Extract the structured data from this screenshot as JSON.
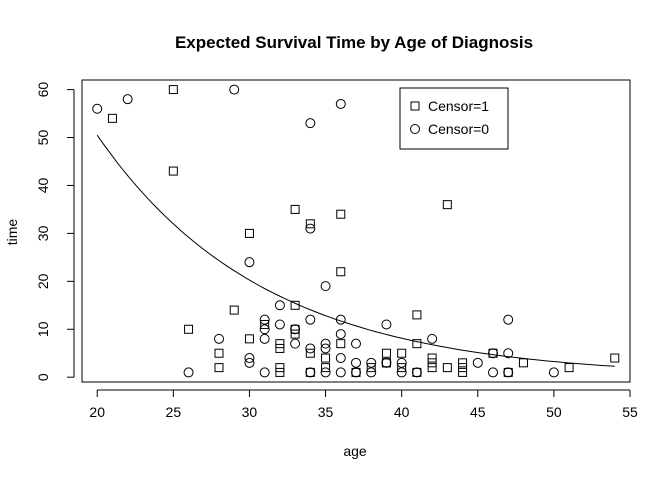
{
  "chart_data": {
    "type": "scatter",
    "title": "Expected Survival Time by Age of Diagnosis",
    "xlabel": "age",
    "ylabel": "time",
    "xlim": [
      19,
      55
    ],
    "ylim": [
      -1,
      62
    ],
    "xticks": [
      20,
      25,
      30,
      35,
      40,
      45,
      50,
      55
    ],
    "yticks": [
      0,
      10,
      20,
      30,
      40,
      50,
      60
    ],
    "legend": {
      "position": "top-right",
      "entries": [
        {
          "label": "Censor=1",
          "marker": "square"
        },
        {
          "label": "Censor=0",
          "marker": "circle"
        }
      ]
    },
    "series": [
      {
        "name": "Censor=1",
        "marker": "square",
        "points": [
          [
            21,
            54
          ],
          [
            25,
            60
          ],
          [
            25,
            43
          ],
          [
            26,
            10
          ],
          [
            28,
            5
          ],
          [
            28,
            2
          ],
          [
            29,
            14
          ],
          [
            30,
            30
          ],
          [
            30,
            8
          ],
          [
            31,
            11
          ],
          [
            32,
            7
          ],
          [
            32,
            6
          ],
          [
            32,
            2
          ],
          [
            32,
            1
          ],
          [
            33,
            35
          ],
          [
            33,
            15
          ],
          [
            33,
            10
          ],
          [
            33,
            9
          ],
          [
            34,
            32
          ],
          [
            34,
            5
          ],
          [
            34,
            1
          ],
          [
            35,
            4
          ],
          [
            35,
            2
          ],
          [
            36,
            34
          ],
          [
            36,
            22
          ],
          [
            36,
            7
          ],
          [
            37,
            1
          ],
          [
            38,
            2
          ],
          [
            39,
            5
          ],
          [
            39,
            3
          ],
          [
            39,
            3
          ],
          [
            40,
            5
          ],
          [
            40,
            2
          ],
          [
            41,
            13
          ],
          [
            41,
            7
          ],
          [
            41,
            1
          ],
          [
            42,
            4
          ],
          [
            42,
            3
          ],
          [
            42,
            2
          ],
          [
            43,
            36
          ],
          [
            43,
            2
          ],
          [
            44,
            3
          ],
          [
            44,
            2
          ],
          [
            44,
            1
          ],
          [
            46,
            5
          ],
          [
            47,
            1
          ],
          [
            48,
            3
          ],
          [
            51,
            2
          ],
          [
            54,
            4
          ]
        ]
      },
      {
        "name": "Censor=0",
        "marker": "circle",
        "points": [
          [
            20,
            56
          ],
          [
            22,
            58
          ],
          [
            26,
            1
          ],
          [
            28,
            8
          ],
          [
            29,
            60
          ],
          [
            30,
            24
          ],
          [
            30,
            4
          ],
          [
            30,
            3
          ],
          [
            31,
            12
          ],
          [
            31,
            10
          ],
          [
            31,
            8
          ],
          [
            31,
            1
          ],
          [
            32,
            15
          ],
          [
            32,
            11
          ],
          [
            33,
            10
          ],
          [
            33,
            7
          ],
          [
            34,
            53
          ],
          [
            34,
            31
          ],
          [
            34,
            12
          ],
          [
            34,
            6
          ],
          [
            34,
            1
          ],
          [
            35,
            19
          ],
          [
            35,
            7
          ],
          [
            35,
            6
          ],
          [
            35,
            1
          ],
          [
            36,
            57
          ],
          [
            36,
            12
          ],
          [
            36,
            9
          ],
          [
            36,
            4
          ],
          [
            36,
            1
          ],
          [
            37,
            7
          ],
          [
            37,
            3
          ],
          [
            37,
            1
          ],
          [
            38,
            3
          ],
          [
            38,
            1
          ],
          [
            39,
            11
          ],
          [
            39,
            3
          ],
          [
            40,
            3
          ],
          [
            40,
            1
          ],
          [
            41,
            1
          ],
          [
            42,
            8
          ],
          [
            45,
            3
          ],
          [
            46,
            5
          ],
          [
            46,
            1
          ],
          [
            47,
            12
          ],
          [
            47,
            5
          ],
          [
            47,
            1
          ],
          [
            50,
            1
          ]
        ]
      }
    ],
    "fitted_curve": {
      "type": "exponential",
      "a": 313.5,
      "b": 0.0913,
      "x_range": [
        20,
        54
      ]
    }
  }
}
